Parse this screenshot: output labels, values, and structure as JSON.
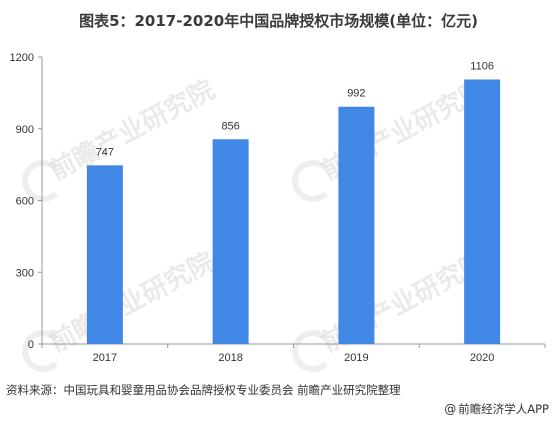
{
  "title": "图表5：2017-2020年中国品牌授权市场规模(单位：亿元)",
  "watermark_text": "前瞻产业研究院",
  "source": "资料来源：中国玩具和婴童用品协会品牌授权专业委员会 前瞻产业研究院整理",
  "brand": {
    "icon": "at-sign-icon",
    "symbol": "@",
    "label": "前瞻经济学人APP"
  },
  "colors": {
    "bar": "#4187e6",
    "axis": "#999999",
    "text": "#333333"
  },
  "chart_data": {
    "type": "bar",
    "title": "",
    "xlabel": "",
    "ylabel": "",
    "categories": [
      "2017",
      "2018",
      "2019",
      "2020"
    ],
    "values": [
      747,
      856,
      992,
      1106
    ],
    "data_labels": [
      "747",
      "856",
      "992",
      "1106"
    ],
    "ylim": [
      0,
      1200
    ],
    "yticks": [
      0,
      300,
      600,
      900,
      1200
    ],
    "grid": false,
    "legend": "none"
  }
}
